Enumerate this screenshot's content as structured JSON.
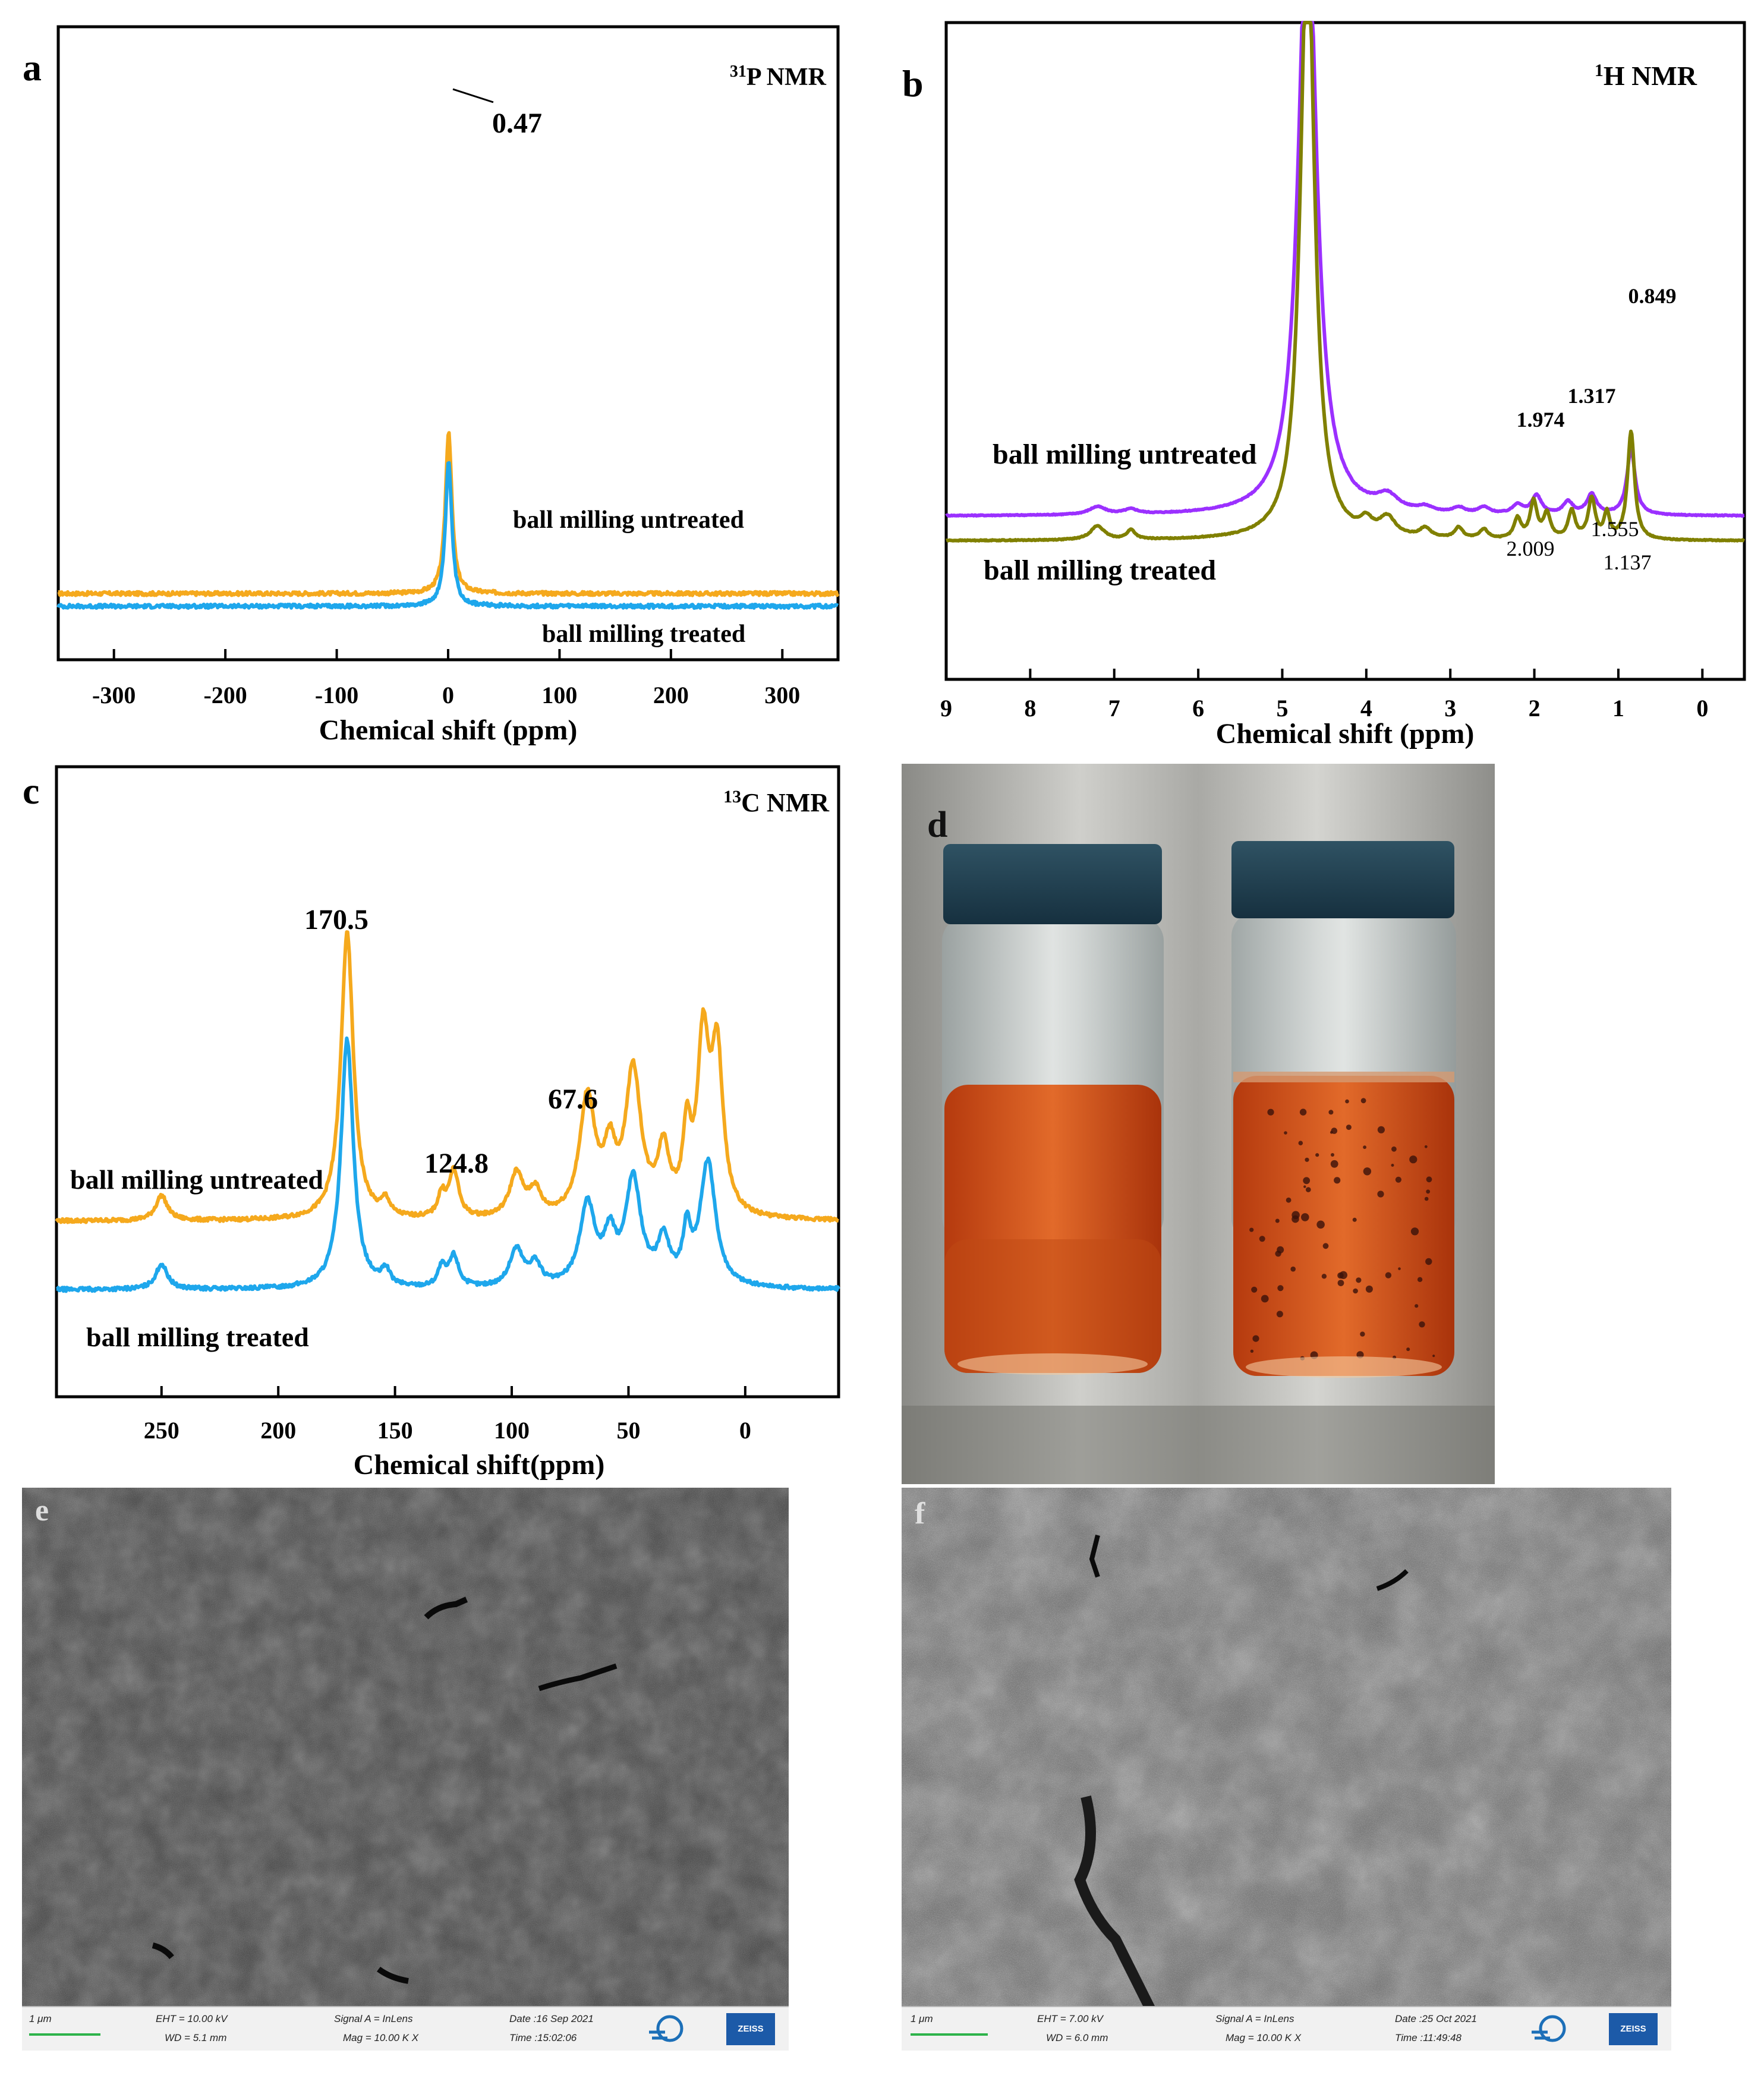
{
  "panels": {
    "a": {
      "letter": "a",
      "title_sup": "31",
      "title_text": "P NMR",
      "peak_label": "0.47",
      "xlabel": "Chemical shift (ppm)",
      "ticks": [
        "-300",
        "-200",
        "-100",
        "0",
        "100",
        "200",
        "300"
      ],
      "legend_top": "ball milling untreated",
      "legend_bottom": "ball milling treated"
    },
    "b": {
      "letter": "b",
      "title_sup": "1",
      "title_text": "H NMR",
      "xlabel": "Chemical shift (ppm)",
      "ticks": [
        "9",
        "8",
        "7",
        "6",
        "5",
        "4",
        "3",
        "2",
        "1",
        "0"
      ],
      "legend_top": "ball milling untreated",
      "legend_bottom": "ball milling treated",
      "peak_labels": [
        "0.849",
        "1.317",
        "1.974",
        "2.009",
        "1.555",
        "1.137"
      ]
    },
    "c": {
      "letter": "c",
      "title_sup": "13",
      "title_text": "C NMR",
      "xlabel": "Chemical shift(ppm)",
      "ticks": [
        "250",
        "200",
        "150",
        "100",
        "50",
        "0"
      ],
      "legend_top": "ball milling untreated",
      "legend_bottom": "ball milling treated",
      "peak_labels": [
        "170.5",
        "124.8",
        "67.6"
      ]
    },
    "d": {
      "letter": "d"
    },
    "e": {
      "letter": "e",
      "scale": "1 μm",
      "eht": "EHT = 10.00 kV",
      "wd": "WD = 5.1 mm",
      "signal": "Signal A = InLens",
      "mag": "Mag =  10.00 K X",
      "date": "Date :16 Sep 2021",
      "time": "Time :15:02:06",
      "brand": "ZEISS"
    },
    "f": {
      "letter": "f",
      "scale": "1 μm",
      "eht": "EHT =  7.00 kV",
      "wd": "WD = 6.0 mm",
      "signal": "Signal A = InLens",
      "mag": "Mag =  10.00 K X",
      "date": "Date :25 Oct 2021",
      "time": "Time :11:49:48",
      "brand": "ZEISS"
    }
  },
  "chart_data": [
    {
      "panel": "a",
      "type": "line",
      "title": "31P NMR",
      "xlabel": "Chemical shift (ppm)",
      "ylabel": "",
      "xlim": [
        -350,
        350
      ],
      "x_reversed": false,
      "series": [
        {
          "name": "ball milling untreated",
          "color": "#f5a91d",
          "baseline": 0.82,
          "peaks": [
            {
              "x": 0.47,
              "height": 10.5,
              "width": 3.5
            }
          ],
          "noise": 0.12
        },
        {
          "name": "ball milling treated",
          "color": "#1ea7ec",
          "baseline": 0,
          "peaks": [
            {
              "x": 0.47,
              "height": 9.3,
              "width": 3.5
            }
          ],
          "noise": 0.12
        }
      ],
      "annotations": [
        {
          "text": "0.47",
          "x": 0.47
        }
      ]
    },
    {
      "panel": "b",
      "type": "line",
      "title": "1H NMR",
      "xlabel": "Chemical shift (ppm)",
      "ylabel": "",
      "xlim": [
        9.0,
        -0.5
      ],
      "x_reversed": true,
      "series": [
        {
          "name": "ball milling untreated",
          "color": "#9b30ff",
          "baseline": 1.6,
          "peaks": [
            {
              "x": 4.7,
              "height": 40,
              "width": 0.13
            },
            {
              "x": 3.75,
              "height": 0.9,
              "width": 0.15
            },
            {
              "x": 7.2,
              "height": 0.5,
              "width": 0.12
            },
            {
              "x": 6.8,
              "height": 0.3,
              "width": 0.1
            },
            {
              "x": 3.3,
              "height": 0.3,
              "width": 0.1
            },
            {
              "x": 2.9,
              "height": 0.35,
              "width": 0.08
            },
            {
              "x": 2.6,
              "height": 0.4,
              "width": 0.08
            },
            {
              "x": 2.2,
              "height": 0.6,
              "width": 0.07
            },
            {
              "x": 1.974,
              "height": 1.2,
              "width": 0.07
            },
            {
              "x": 1.6,
              "height": 0.8,
              "width": 0.07
            },
            {
              "x": 1.317,
              "height": 1.3,
              "width": 0.07
            },
            {
              "x": 0.849,
              "height": 4.2,
              "width": 0.06
            }
          ]
        },
        {
          "name": "ball milling treated",
          "color": "#808000",
          "baseline": 0,
          "peaks": [
            {
              "x": 4.7,
              "height": 40,
              "width": 0.1
            },
            {
              "x": 3.75,
              "height": 1.2,
              "width": 0.12
            },
            {
              "x": 4.0,
              "height": 0.8,
              "width": 0.08
            },
            {
              "x": 7.2,
              "height": 0.9,
              "width": 0.1
            },
            {
              "x": 6.8,
              "height": 0.6,
              "width": 0.06
            },
            {
              "x": 3.3,
              "height": 0.6,
              "width": 0.08
            },
            {
              "x": 2.9,
              "height": 0.7,
              "width": 0.06
            },
            {
              "x": 2.6,
              "height": 0.6,
              "width": 0.06
            },
            {
              "x": 2.2,
              "height": 1.3,
              "width": 0.05
            },
            {
              "x": 2.009,
              "height": 2.4,
              "width": 0.05
            },
            {
              "x": 1.85,
              "height": 1.6,
              "width": 0.05
            },
            {
              "x": 1.555,
              "height": 1.8,
              "width": 0.05
            },
            {
              "x": 1.317,
              "height": 2.6,
              "width": 0.05
            },
            {
              "x": 1.137,
              "height": 1.6,
              "width": 0.04
            },
            {
              "x": 0.849,
              "height": 7.0,
              "width": 0.05
            }
          ]
        }
      ],
      "annotations": [
        {
          "text": "0.849",
          "x": 0.849
        },
        {
          "text": "1.317",
          "x": 1.317
        },
        {
          "text": "1.974",
          "x": 1.974
        },
        {
          "text": "2.009",
          "x": 2.009
        },
        {
          "text": "1.555",
          "x": 1.555
        },
        {
          "text": "1.137",
          "x": 1.137
        }
      ]
    },
    {
      "panel": "c",
      "type": "line",
      "title": "13C NMR",
      "xlabel": "Chemical shift(ppm)",
      "ylabel": "",
      "xlim": [
        295,
        -40
      ],
      "x_reversed": true,
      "series": [
        {
          "name": "ball milling untreated",
          "color": "#f5a91d",
          "baseline": 1.1,
          "peaks": [
            {
              "x": 250,
              "height": 0.4,
              "width": 3
            },
            {
              "x": 170.5,
              "height": 4.6,
              "width": 3.2
            },
            {
              "x": 154,
              "height": 0.25,
              "width": 2
            },
            {
              "x": 130,
              "height": 0.35,
              "width": 2
            },
            {
              "x": 124.8,
              "height": 0.75,
              "width": 2.5
            },
            {
              "x": 98,
              "height": 0.7,
              "width": 3.5
            },
            {
              "x": 90,
              "height": 0.4,
              "width": 3
            },
            {
              "x": 67.6,
              "height": 1.9,
              "width": 4
            },
            {
              "x": 58,
              "height": 0.9,
              "width": 3
            },
            {
              "x": 48,
              "height": 2.3,
              "width": 4
            },
            {
              "x": 35,
              "height": 1.0,
              "width": 3
            },
            {
              "x": 25,
              "height": 1.2,
              "width": 2
            },
            {
              "x": 18,
              "height": 2.7,
              "width": 3
            },
            {
              "x": 12,
              "height": 2.5,
              "width": 3
            }
          ]
        },
        {
          "name": "ball milling treated",
          "color": "#1ea7ec",
          "baseline": 0,
          "peaks": [
            {
              "x": 250,
              "height": 0.4,
              "width": 3
            },
            {
              "x": 170.5,
              "height": 4.0,
              "width": 3.2
            },
            {
              "x": 154,
              "height": 0.25,
              "width": 2
            },
            {
              "x": 130,
              "height": 0.3,
              "width": 2
            },
            {
              "x": 124.8,
              "height": 0.5,
              "width": 2.5
            },
            {
              "x": 98,
              "height": 0.6,
              "width": 3.5
            },
            {
              "x": 90,
              "height": 0.35,
              "width": 3
            },
            {
              "x": 67.6,
              "height": 1.3,
              "width": 4
            },
            {
              "x": 58,
              "height": 0.7,
              "width": 3
            },
            {
              "x": 48,
              "height": 1.7,
              "width": 4
            },
            {
              "x": 35,
              "height": 0.7,
              "width": 3
            },
            {
              "x": 25,
              "height": 0.8,
              "width": 2
            },
            {
              "x": 16,
              "height": 2.0,
              "width": 4
            }
          ]
        }
      ],
      "annotations": [
        {
          "text": "170.5",
          "x": 170.5
        },
        {
          "text": "124.8",
          "x": 124.8
        },
        {
          "text": "67.6",
          "x": 67.6
        }
      ]
    }
  ]
}
